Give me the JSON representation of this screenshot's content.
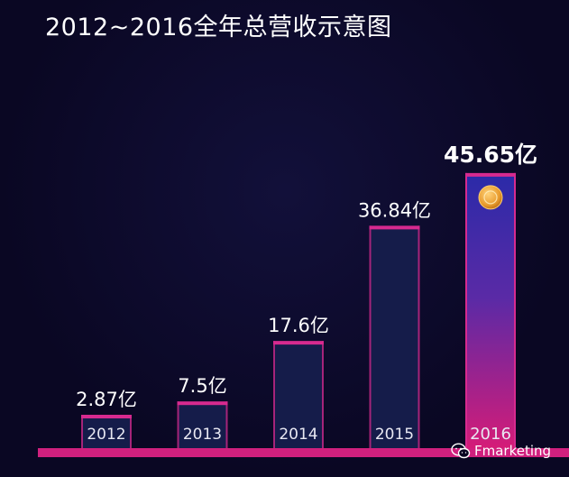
{
  "title": "2012~2016全年总营收示意图",
  "watermark": {
    "icon": "wechat-icon",
    "text": "Fmarketing"
  },
  "colors": {
    "background": "#0a0723",
    "bar_fill": "#151c4a",
    "bar_border": "#d72a8f",
    "axis_line": "#d0207e",
    "highlight_top": "#2b2aa8",
    "highlight_bottom": "#d51c78",
    "coin": "#f2a93b"
  },
  "chart_data": {
    "type": "bar",
    "title": "2012~2016全年总营收示意图",
    "categories": [
      "2012",
      "2013",
      "2014",
      "2015",
      "2016"
    ],
    "values": [
      2.87,
      7.5,
      17.6,
      36.84,
      45.65
    ],
    "value_labels": [
      "2.87亿",
      "7.5亿",
      "17.6亿",
      "36.84亿",
      "45.65亿"
    ],
    "highlight_category": "2016",
    "xlabel": "",
    "ylabel": "",
    "ylim": [
      0,
      50
    ],
    "grid": false,
    "legend": "none"
  }
}
